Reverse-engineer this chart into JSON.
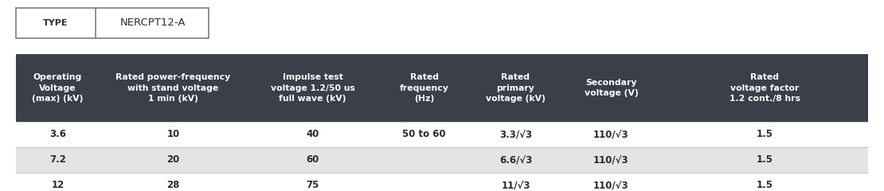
{
  "type_label": "TYPE",
  "type_value": "NERCPT12-A",
  "header_bg": "#3a3f4a",
  "header_text_color": "#ffffff",
  "row_colors": [
    "#ffffff",
    "#e4e4e4",
    "#ffffff"
  ],
  "text_color": "#2c2c2c",
  "col_headers": [
    "Operating\nVoltage\n(max) (kV)",
    "Rated power-frequency\nwith stand voltage\n1 min (kV)",
    "Impulse test\nvoltage 1.2/50 us\nfull wave (kV)",
    "Rated\nfrequency\n(Hz)",
    "Rated\nprimary\nvoltage (kV)",
    "Secondary\nvoltage (V)",
    "Rated\nvoltage factor\n1.2 cont./8 hrs"
  ],
  "rows": [
    [
      "3.6",
      "10",
      "40",
      "50 to 60",
      "3.3/√3",
      "110/√3",
      "1.5"
    ],
    [
      "7.2",
      "20",
      "60",
      "",
      "6.6/√3",
      "110/√3",
      "1.5"
    ],
    [
      "12",
      "28",
      "75",
      "",
      "11/√3",
      "110/√3",
      "1.5"
    ]
  ],
  "figure_bg": "#ffffff",
  "fig_w": 11.1,
  "fig_h": 2.4,
  "dpi": 100
}
